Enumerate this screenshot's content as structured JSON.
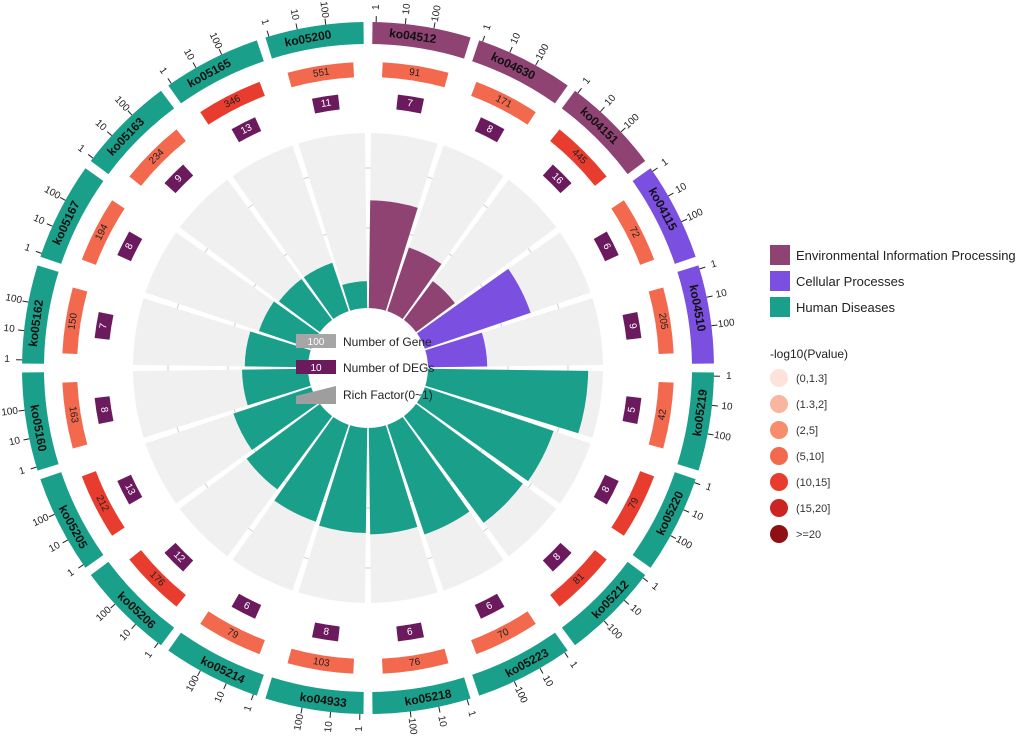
{
  "chart_data": {
    "type": "circos-enrichment",
    "title": "",
    "categories_legend": [
      {
        "name": "Environmental Information Processing",
        "color": "#8e4372"
      },
      {
        "name": "Cellular Processes",
        "color": "#7b4fe0"
      },
      {
        "name": "Human Diseases",
        "color": "#1aa08a"
      }
    ],
    "pvalue_legend": {
      "title": "-log10(Pvalue)",
      "levels": [
        {
          "label": "(0,1.3]",
          "color": "#fde3dc"
        },
        {
          "label": "(1.3,2]",
          "color": "#f8b6a0"
        },
        {
          "label": "(2,5]",
          "color": "#f78d6c"
        },
        {
          "label": "(5,10]",
          "color": "#f2694e"
        },
        {
          "label": "(10,15]",
          "color": "#e83c2f"
        },
        {
          "label": "(15,20]",
          "color": "#cc2323"
        },
        {
          "label": ">=20",
          "color": "#8f0f14"
        }
      ]
    },
    "center_legend": {
      "gene_label": "Number of Gene",
      "gene_sample": "100",
      "deg_label": "Number of DEGs",
      "deg_sample": "10",
      "rich_label": "Rich Factor(0~1)"
    },
    "axis_ticks": [
      "1",
      "10",
      "100"
    ],
    "deg_color": "#6b1a5e",
    "pathways": [
      {
        "id": "ko04512",
        "category": "Environmental Information Processing",
        "genes": 91,
        "degs": 7,
        "pvalue_level": "(5,10]",
        "rich_factor": 0.08
      },
      {
        "id": "ko04630",
        "category": "Environmental Information Processing",
        "genes": 171,
        "degs": 8,
        "pvalue_level": "(5,10]",
        "rich_factor": 0.05
      },
      {
        "id": "ko04151",
        "category": "Environmental Information Processing",
        "genes": 445,
        "degs": 16,
        "pvalue_level": "(10,15]",
        "rich_factor": 0.036
      },
      {
        "id": "ko04115",
        "category": "Cellular Processes",
        "genes": 72,
        "degs": 6,
        "pvalue_level": "(5,10]",
        "rich_factor": 0.083
      },
      {
        "id": "ko04510",
        "category": "Cellular Processes",
        "genes": 205,
        "degs": 9,
        "pvalue_level": "(5,10]",
        "rich_factor": 0.044
      },
      {
        "id": "ko05219",
        "category": "Human Diseases",
        "genes": 42,
        "degs": 5,
        "pvalue_level": "(5,10]",
        "rich_factor": 0.119
      },
      {
        "id": "ko05220",
        "category": "Human Diseases",
        "genes": 79,
        "degs": 8,
        "pvalue_level": "(10,15]",
        "rich_factor": 0.101
      },
      {
        "id": "ko05212",
        "category": "Human Diseases",
        "genes": 81,
        "degs": 8,
        "pvalue_level": "(10,15]",
        "rich_factor": 0.099
      },
      {
        "id": "ko05223",
        "category": "Human Diseases",
        "genes": 70,
        "degs": 6,
        "pvalue_level": "(5,10]",
        "rich_factor": 0.086
      },
      {
        "id": "ko05218",
        "category": "Human Diseases",
        "genes": 76,
        "degs": 6,
        "pvalue_level": "(5,10]",
        "rich_factor": 0.079
      },
      {
        "id": "ko04933",
        "category": "Human Diseases",
        "genes": 103,
        "degs": 8,
        "pvalue_level": "(5,10]",
        "rich_factor": 0.078
      },
      {
        "id": "ko05214",
        "category": "Human Diseases",
        "genes": 79,
        "degs": 6,
        "pvalue_level": "(5,10]",
        "rich_factor": 0.076
      },
      {
        "id": "ko05206",
        "category": "Human Diseases",
        "genes": 176,
        "degs": 12,
        "pvalue_level": "(10,15]",
        "rich_factor": 0.068
      },
      {
        "id": "ko05205",
        "category": "Human Diseases",
        "genes": 212,
        "degs": 13,
        "pvalue_level": "(10,15]",
        "rich_factor": 0.061
      },
      {
        "id": "ko05160",
        "category": "Human Diseases",
        "genes": 163,
        "degs": 8,
        "pvalue_level": "(5,10]",
        "rich_factor": 0.049
      },
      {
        "id": "ko05162",
        "category": "Human Diseases",
        "genes": 150,
        "degs": 7,
        "pvalue_level": "(5,10]",
        "rich_factor": 0.047
      },
      {
        "id": "ko05167",
        "category": "Human Diseases",
        "genes": 194,
        "degs": 8,
        "pvalue_level": "(5,10]",
        "rich_factor": 0.041
      },
      {
        "id": "ko05163",
        "category": "Human Diseases",
        "genes": 234,
        "degs": 9,
        "pvalue_level": "(5,10]",
        "rich_factor": 0.038
      },
      {
        "id": "ko05165",
        "category": "Human Diseases",
        "genes": 346,
        "degs": 13,
        "pvalue_level": "(10,15]",
        "rich_factor": 0.038
      },
      {
        "id": "ko05200",
        "category": "Human Diseases",
        "genes": 551,
        "degs": 11,
        "pvalue_level": "(5,10]",
        "rich_factor": 0.02
      }
    ]
  }
}
